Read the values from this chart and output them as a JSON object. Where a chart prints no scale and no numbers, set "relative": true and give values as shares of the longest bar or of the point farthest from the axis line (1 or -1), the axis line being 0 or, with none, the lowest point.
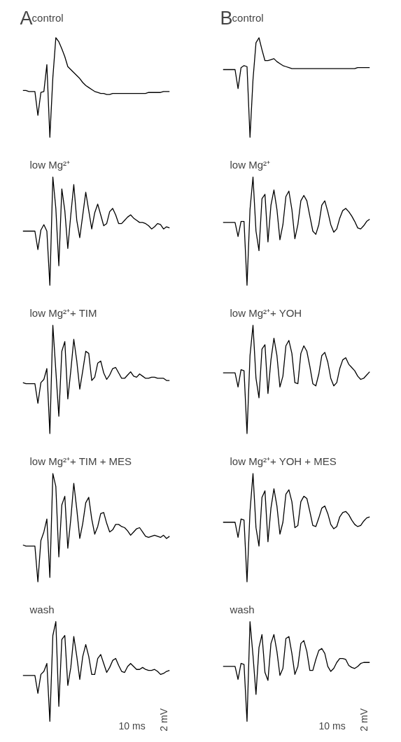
{
  "chart_data": [
    {
      "type": "line",
      "title": "control",
      "annotations": [
        "A"
      ],
      "relative": true,
      "color": "#000000",
      "categories": [
        null,
        null,
        null,
        null,
        null,
        null,
        null,
        null,
        null,
        null,
        null,
        null,
        null,
        null,
        null,
        null,
        null,
        null,
        null,
        null,
        null,
        null,
        null,
        null,
        null,
        null,
        null,
        null,
        null,
        null,
        null,
        null,
        null,
        null,
        null,
        null,
        null,
        null,
        null,
        null,
        null,
        null,
        null,
        null,
        null,
        null,
        null,
        null,
        null,
        null
      ],
      "values": [
        0.47,
        0.47,
        0.46,
        0.46,
        0.46,
        0.22,
        0.45,
        0.46,
        0.73,
        0,
        0.6,
        1,
        0.96,
        0.89,
        0.81,
        0.71,
        0.68,
        0.65,
        0.62,
        0.59,
        0.55,
        0.52,
        0.5,
        0.48,
        0.46,
        0.45,
        0.44,
        0.44,
        0.43,
        0.43,
        0.44,
        0.44,
        0.44,
        0.44,
        0.44,
        0.44,
        0.44,
        0.44,
        0.44,
        0.44,
        0.44,
        0.44,
        0.45,
        0.45,
        0.45,
        0.45,
        0.45,
        0.46,
        0.46,
        0.46
      ]
    },
    {
      "type": "line",
      "title": "control",
      "annotations": [
        "B"
      ],
      "relative": true,
      "color": "#000000",
      "categories": [
        null,
        null,
        null,
        null,
        null,
        null,
        null,
        null,
        null,
        null,
        null,
        null,
        null,
        null,
        null,
        null,
        null,
        null,
        null,
        null,
        null,
        null,
        null,
        null,
        null,
        null,
        null,
        null,
        null,
        null,
        null,
        null,
        null,
        null,
        null,
        null,
        null,
        null,
        null,
        null,
        null,
        null,
        null,
        null,
        null,
        null,
        null,
        null,
        null,
        null
      ],
      "values": [
        0.68,
        0.68,
        0.68,
        0.68,
        0.68,
        0.49,
        0.7,
        0.72,
        0.71,
        0,
        0.58,
        0.95,
        1,
        0.88,
        0.77,
        0.77,
        0.78,
        0.79,
        0.76,
        0.74,
        0.72,
        0.71,
        0.7,
        0.69,
        0.69,
        0.69,
        0.69,
        0.69,
        0.69,
        0.69,
        0.69,
        0.69,
        0.69,
        0.69,
        0.69,
        0.69,
        0.69,
        0.69,
        0.69,
        0.69,
        0.69,
        0.69,
        0.69,
        0.69,
        0.69,
        0.7,
        0.7,
        0.7,
        0.7,
        0.7
      ]
    },
    {
      "type": "line",
      "title": "low Mg²⁺",
      "relative": true,
      "color": "#000000",
      "categories": [
        null,
        null,
        null,
        null,
        null,
        null,
        null,
        null,
        null,
        null,
        null,
        null,
        null,
        null,
        null,
        null,
        null,
        null,
        null,
        null,
        null,
        null,
        null,
        null,
        null,
        null,
        null,
        null,
        null,
        null,
        null,
        null,
        null,
        null,
        null,
        null,
        null,
        null,
        null,
        null,
        null,
        null,
        null,
        null,
        null,
        null,
        null,
        null,
        null,
        null
      ],
      "values": [
        0.5,
        0.5,
        0.5,
        0.5,
        0.5,
        0.33,
        0.51,
        0.56,
        0.5,
        0,
        1,
        0.71,
        0.18,
        0.89,
        0.69,
        0.34,
        0.65,
        0.93,
        0.6,
        0.44,
        0.65,
        0.86,
        0.69,
        0.52,
        0.67,
        0.75,
        0.65,
        0.55,
        0.57,
        0.68,
        0.71,
        0.65,
        0.57,
        0.57,
        0.6,
        0.63,
        0.65,
        0.62,
        0.6,
        0.58,
        0.58,
        0.57,
        0.55,
        0.52,
        0.54,
        0.57,
        0.56,
        0.52,
        0.54,
        0.53
      ]
    },
    {
      "type": "line",
      "title": "low Mg²⁺",
      "relative": true,
      "color": "#000000",
      "categories": [
        null,
        null,
        null,
        null,
        null,
        null,
        null,
        null,
        null,
        null,
        null,
        null,
        null,
        null,
        null,
        null,
        null,
        null,
        null,
        null,
        null,
        null,
        null,
        null,
        null,
        null,
        null,
        null,
        null,
        null,
        null,
        null,
        null,
        null,
        null,
        null,
        null,
        null,
        null,
        null,
        null,
        null,
        null,
        null,
        null,
        null,
        null,
        null,
        null,
        null
      ],
      "values": [
        0.58,
        0.58,
        0.58,
        0.58,
        0.58,
        0.45,
        0.59,
        0.59,
        0,
        0.7,
        1,
        0.5,
        0.32,
        0.8,
        0.84,
        0.4,
        0.74,
        0.88,
        0.7,
        0.42,
        0.56,
        0.82,
        0.87,
        0.7,
        0.43,
        0.56,
        0.78,
        0.83,
        0.78,
        0.64,
        0.5,
        0.47,
        0.56,
        0.74,
        0.78,
        0.68,
        0.56,
        0.49,
        0.52,
        0.62,
        0.69,
        0.71,
        0.68,
        0.64,
        0.59,
        0.53,
        0.52,
        0.55,
        0.59,
        0.61
      ]
    },
    {
      "type": "line",
      "title": "low Mg²⁺+ TIM",
      "relative": true,
      "color": "#000000",
      "categories": [
        null,
        null,
        null,
        null,
        null,
        null,
        null,
        null,
        null,
        null,
        null,
        null,
        null,
        null,
        null,
        null,
        null,
        null,
        null,
        null,
        null,
        null,
        null,
        null,
        null,
        null,
        null,
        null,
        null,
        null,
        null,
        null,
        null,
        null,
        null,
        null,
        null,
        null,
        null,
        null,
        null,
        null,
        null,
        null,
        null,
        null,
        null,
        null,
        null,
        null
      ],
      "values": [
        0.47,
        0.46,
        0.46,
        0.46,
        0.46,
        0.28,
        0.47,
        0.5,
        0.6,
        0,
        1,
        0.58,
        0.16,
        0.76,
        0.85,
        0.32,
        0.58,
        0.87,
        0.67,
        0.41,
        0.58,
        0.76,
        0.74,
        0.49,
        0.52,
        0.65,
        0.67,
        0.56,
        0.5,
        0.54,
        0.6,
        0.61,
        0.56,
        0.51,
        0.51,
        0.54,
        0.57,
        0.53,
        0.52,
        0.55,
        0.53,
        0.51,
        0.51,
        0.52,
        0.52,
        0.51,
        0.51,
        0.51,
        0.49,
        0.49
      ]
    },
    {
      "type": "line",
      "title": "low Mg²⁺+ YOH",
      "relative": true,
      "color": "#000000",
      "categories": [
        null,
        null,
        null,
        null,
        null,
        null,
        null,
        null,
        null,
        null,
        null,
        null,
        null,
        null,
        null,
        null,
        null,
        null,
        null,
        null,
        null,
        null,
        null,
        null,
        null,
        null,
        null,
        null,
        null,
        null,
        null,
        null,
        null,
        null,
        null,
        null,
        null,
        null,
        null,
        null,
        null,
        null,
        null,
        null,
        null,
        null,
        null,
        null,
        null,
        null
      ],
      "values": [
        0.56,
        0.56,
        0.56,
        0.56,
        0.56,
        0.43,
        0.59,
        0.58,
        0,
        0.72,
        1,
        0.51,
        0.33,
        0.78,
        0.82,
        0.37,
        0.68,
        0.88,
        0.72,
        0.43,
        0.53,
        0.81,
        0.86,
        0.74,
        0.47,
        0.46,
        0.74,
        0.81,
        0.76,
        0.62,
        0.46,
        0.44,
        0.55,
        0.72,
        0.75,
        0.66,
        0.51,
        0.44,
        0.47,
        0.6,
        0.68,
        0.7,
        0.64,
        0.61,
        0.58,
        0.53,
        0.5,
        0.51,
        0.54,
        0.57
      ]
    },
    {
      "type": "line",
      "title": "low Mg²⁺+ TIM + MES",
      "relative": true,
      "color": "#000000",
      "categories": [
        null,
        null,
        null,
        null,
        null,
        null,
        null,
        null,
        null,
        null,
        null,
        null,
        null,
        null,
        null,
        null,
        null,
        null,
        null,
        null,
        null,
        null,
        null,
        null,
        null,
        null,
        null,
        null,
        null,
        null,
        null,
        null,
        null,
        null,
        null,
        null,
        null,
        null,
        null,
        null,
        null,
        null,
        null,
        null,
        null,
        null,
        null,
        null,
        null,
        null
      ],
      "values": [
        0.34,
        0.33,
        0.33,
        0.33,
        0.33,
        0,
        0.38,
        0.46,
        0.58,
        0.04,
        1,
        0.88,
        0.23,
        0.71,
        0.79,
        0.31,
        0.58,
        0.91,
        0.67,
        0.4,
        0.54,
        0.73,
        0.78,
        0.58,
        0.44,
        0.51,
        0.63,
        0.64,
        0.54,
        0.46,
        0.48,
        0.53,
        0.53,
        0.51,
        0.5,
        0.47,
        0.43,
        0.46,
        0.49,
        0.5,
        0.46,
        0.42,
        0.41,
        0.42,
        0.43,
        0.42,
        0.41,
        0.43,
        0.4,
        0.42
      ]
    },
    {
      "type": "line",
      "title": "low Mg²⁺+ YOH + MES",
      "relative": true,
      "color": "#000000",
      "categories": [
        null,
        null,
        null,
        null,
        null,
        null,
        null,
        null,
        null,
        null,
        null,
        null,
        null,
        null,
        null,
        null,
        null,
        null,
        null,
        null,
        null,
        null,
        null,
        null,
        null,
        null,
        null,
        null,
        null,
        null,
        null,
        null,
        null,
        null,
        null,
        null,
        null,
        null,
        null,
        null,
        null,
        null,
        null,
        null,
        null,
        null,
        null,
        null,
        null,
        null
      ],
      "values": [
        0.55,
        0.55,
        0.55,
        0.55,
        0.55,
        0.41,
        0.58,
        0.57,
        0,
        0.65,
        1,
        0.5,
        0.33,
        0.78,
        0.84,
        0.37,
        0.68,
        0.86,
        0.7,
        0.44,
        0.55,
        0.81,
        0.85,
        0.74,
        0.5,
        0.52,
        0.74,
        0.79,
        0.77,
        0.65,
        0.52,
        0.51,
        0.59,
        0.68,
        0.7,
        0.63,
        0.53,
        0.49,
        0.51,
        0.6,
        0.64,
        0.65,
        0.62,
        0.57,
        0.53,
        0.51,
        0.52,
        0.56,
        0.59,
        0.6
      ]
    },
    {
      "type": "line",
      "title": "wash",
      "annotations": [
        "2 mV",
        "10 ms"
      ],
      "relative": true,
      "color": "#000000",
      "categories": [
        null,
        null,
        null,
        null,
        null,
        null,
        null,
        null,
        null,
        null,
        null,
        null,
        null,
        null,
        null,
        null,
        null,
        null,
        null,
        null,
        null,
        null,
        null,
        null,
        null,
        null,
        null,
        null,
        null,
        null,
        null,
        null,
        null,
        null,
        null,
        null,
        null,
        null,
        null,
        null,
        null,
        null,
        null,
        null,
        null,
        null,
        null,
        null,
        null,
        null
      ],
      "values": [
        0.46,
        0.46,
        0.46,
        0.46,
        0.46,
        0.28,
        0.47,
        0.5,
        0.58,
        0,
        0.86,
        1,
        0.15,
        0.82,
        0.86,
        0.36,
        0.54,
        0.85,
        0.65,
        0.42,
        0.65,
        0.77,
        0.65,
        0.47,
        0.47,
        0.63,
        0.67,
        0.58,
        0.49,
        0.54,
        0.61,
        0.63,
        0.56,
        0.5,
        0.49,
        0.55,
        0.58,
        0.55,
        0.52,
        0.52,
        0.54,
        0.52,
        0.51,
        0.51,
        0.52,
        0.5,
        0.47,
        0.48,
        0.5,
        0.51
      ]
    },
    {
      "type": "line",
      "title": "wash",
      "annotations": [
        "2 mV",
        "10 ms"
      ],
      "relative": true,
      "color": "#000000",
      "categories": [
        null,
        null,
        null,
        null,
        null,
        null,
        null,
        null,
        null,
        null,
        null,
        null,
        null,
        null,
        null,
        null,
        null,
        null,
        null,
        null,
        null,
        null,
        null,
        null,
        null,
        null,
        null,
        null,
        null,
        null,
        null,
        null,
        null,
        null,
        null,
        null,
        null,
        null,
        null,
        null,
        null,
        null,
        null,
        null,
        null,
        null,
        null,
        null,
        null,
        null
      ],
      "values": [
        0.55,
        0.55,
        0.55,
        0.55,
        0.55,
        0.42,
        0.58,
        0.57,
        0,
        1,
        0.66,
        0.27,
        0.74,
        0.87,
        0.49,
        0.41,
        0.78,
        0.87,
        0.7,
        0.46,
        0.53,
        0.83,
        0.85,
        0.68,
        0.47,
        0.55,
        0.78,
        0.81,
        0.7,
        0.51,
        0.51,
        0.62,
        0.71,
        0.73,
        0.68,
        0.55,
        0.5,
        0.53,
        0.59,
        0.63,
        0.63,
        0.62,
        0.56,
        0.54,
        0.53,
        0.55,
        0.58,
        0.59,
        0.59,
        0.59
      ]
    }
  ]
}
